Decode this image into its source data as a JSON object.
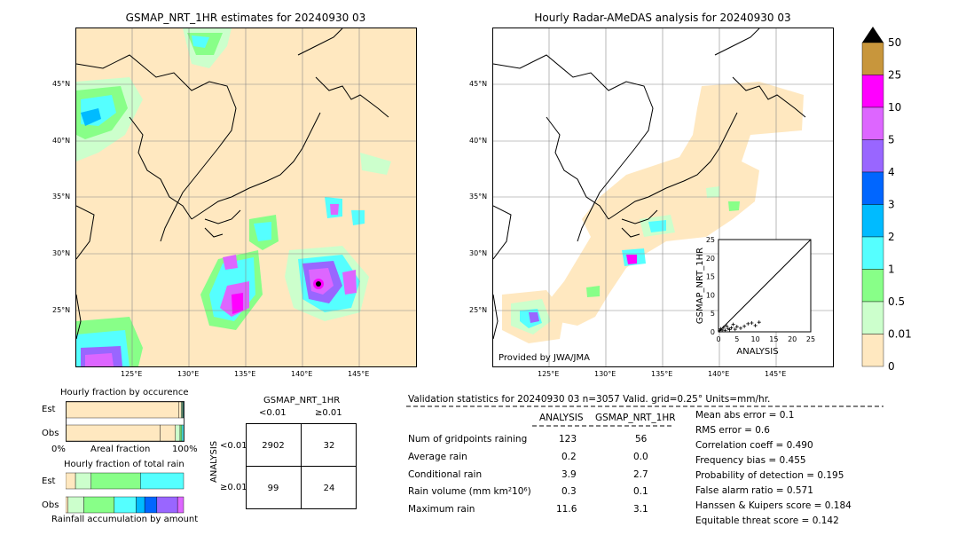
{
  "left_map": {
    "title": "GSMAP_NRT_1HR estimates for 20240930 03",
    "lat_ticks": [
      "45°N",
      "40°N",
      "35°N",
      "30°N",
      "25°N"
    ],
    "lon_ticks": [
      "125°E",
      "130°E",
      "135°E",
      "140°E",
      "145°E"
    ]
  },
  "right_map": {
    "title": "Hourly Radar-AMeDAS analysis for 20240930 03",
    "lat_ticks": [
      "45°N",
      "40°N",
      "35°N",
      "30°N",
      "25°N"
    ],
    "lon_ticks": [
      "125°E",
      "130°E",
      "135°E",
      "140°E",
      "145°E"
    ],
    "credit": "Provided by JWA/JMA"
  },
  "scatter": {
    "ylabel": "GSMAP_NRT_1HR",
    "xlabel": "ANALYSIS",
    "ticks": [
      "0",
      "5",
      "10",
      "15",
      "20",
      "25"
    ]
  },
  "colorbar": {
    "labels": [
      "50",
      "25",
      "10",
      "5",
      "4",
      "3",
      "2",
      "1",
      "0.5",
      "0.01",
      "0"
    ],
    "colors": [
      "#c8963c",
      "#ff00ff",
      "#dd66ff",
      "#9966ff",
      "#0066ff",
      "#00bbff",
      "#55ffff",
      "#88ff88",
      "#ccffcc",
      "#ffe8c0"
    ]
  },
  "occurrence": {
    "title": "Hourly fraction by occurence",
    "est_label": "Est",
    "obs_label": "Obs",
    "axis_left": "0%",
    "axis_mid": "Areal fraction",
    "axis_right": "100%"
  },
  "total_rain": {
    "title": "Hourly fraction of total rain",
    "est_label": "Est",
    "obs_label": "Obs",
    "caption": "Rainfall accumulation by amount"
  },
  "contingency": {
    "title": "GSMAP_NRT_1HR",
    "col_lt": "<0.01",
    "col_ge": "≥0.01",
    "row_axis": "ANALYSIS",
    "row_lt": "<0.01",
    "row_ge": "≥0.01",
    "cells": [
      "2902",
      "32",
      "99",
      "24"
    ]
  },
  "validation": {
    "header": "Validation statistics for 20240930 03  n=3057 Valid. grid=0.25° Units=mm/hr.",
    "col_analysis": "ANALYSIS",
    "col_gsmap": "GSMAP_NRT_1HR",
    "rows": [
      {
        "label": "Num of gridpoints raining",
        "analysis": "123",
        "gsmap": "56"
      },
      {
        "label": "Average rain",
        "analysis": "0.2",
        "gsmap": "0.0"
      },
      {
        "label": "Conditional rain",
        "analysis": "3.9",
        "gsmap": "2.7"
      },
      {
        "label": "Rain volume (mm km²10⁶)",
        "analysis": "0.3",
        "gsmap": "0.1"
      },
      {
        "label": "Maximum rain",
        "analysis": "11.6",
        "gsmap": "3.1"
      }
    ],
    "scores": [
      "Mean abs error =    0.1",
      "RMS error =    0.6",
      "Correlation coeff =  0.490",
      "Frequency bias =  0.455",
      "Probability of detection =  0.195",
      "False alarm ratio =  0.571",
      "Hanssen & Kuipers score =  0.184",
      "Equitable threat score =  0.142"
    ]
  },
  "chart_data": [
    {
      "type": "heatmap",
      "title": "GSMAP_NRT_1HR estimates for 20240930 03",
      "xlabel": "",
      "ylabel": "",
      "x_ticks": [
        "125°E",
        "130°E",
        "135°E",
        "140°E",
        "145°E"
      ],
      "y_ticks": [
        "45°N",
        "40°N",
        "35°N",
        "30°N",
        "25°N"
      ]
    },
    {
      "type": "heatmap",
      "title": "Hourly Radar-AMeDAS analysis for 20240930 03",
      "xlabel": "",
      "ylabel": "",
      "x_ticks": [
        "125°E",
        "130°E",
        "135°E",
        "140°E",
        "145°E"
      ],
      "y_ticks": [
        "45°N",
        "40°N",
        "35°N",
        "30°N",
        "25°N"
      ]
    },
    {
      "type": "scatter",
      "xlabel": "ANALYSIS",
      "ylabel": "GSMAP_NRT_1HR",
      "xlim": [
        0,
        25
      ],
      "ylim": [
        0,
        25
      ],
      "x": [
        0.3,
        0.6,
        1,
        1.4,
        1.8,
        2.2,
        2.6,
        3,
        3.5,
        4,
        4.5,
        5,
        6,
        7,
        8,
        9,
        10,
        11
      ],
      "y": [
        0.3,
        0.8,
        0.5,
        1.2,
        0.4,
        1.6,
        0.9,
        0.6,
        1.1,
        2.0,
        0.7,
        1.4,
        1.0,
        1.5,
        2.2,
        2.4,
        1.7,
        2.6
      ]
    },
    {
      "type": "bar",
      "title": "Hourly fraction by occurence",
      "categories": [
        "Est",
        "Obs"
      ],
      "series": [
        {
          "name": "0",
          "values": [
            0.96,
            0.8
          ]
        },
        {
          "name": "0.01",
          "values": [
            0.02,
            0.13
          ]
        },
        {
          "name": "0.5",
          "values": [
            0.01,
            0.04
          ]
        },
        {
          "name": "1",
          "values": [
            0.005,
            0.015
          ]
        },
        {
          "name": "2",
          "values": [
            0.005,
            0.015
          ]
        }
      ]
    },
    {
      "type": "bar",
      "title": "Hourly fraction of total rain",
      "categories": [
        "Est",
        "Obs"
      ],
      "series": [
        {
          "name": "0.01",
          "values": [
            0.05,
            0.02
          ]
        },
        {
          "name": "0.5",
          "values": [
            0.08,
            0.13
          ]
        },
        {
          "name": "1",
          "values": [
            0.25,
            0.25
          ]
        },
        {
          "name": "2",
          "values": [
            0.22,
            0.18
          ]
        },
        {
          "name": "3",
          "values": [
            0.0,
            0.07
          ]
        },
        {
          "name": "4",
          "values": [
            0.0,
            0.1
          ]
        },
        {
          "name": "5",
          "values": [
            0.0,
            0.17
          ]
        },
        {
          "name": "10",
          "values": [
            0.0,
            0.05
          ]
        }
      ]
    }
  ]
}
